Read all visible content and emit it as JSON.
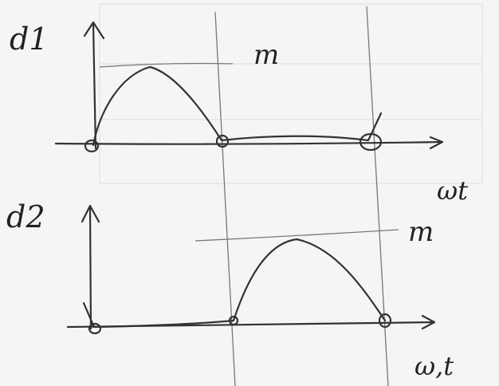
{
  "top": {
    "y_label": "d1",
    "peak_label": "m",
    "x_label": "ωt"
  },
  "bottom": {
    "y_label": "d2",
    "peak_label": "m",
    "x_label": "ω,t"
  }
}
